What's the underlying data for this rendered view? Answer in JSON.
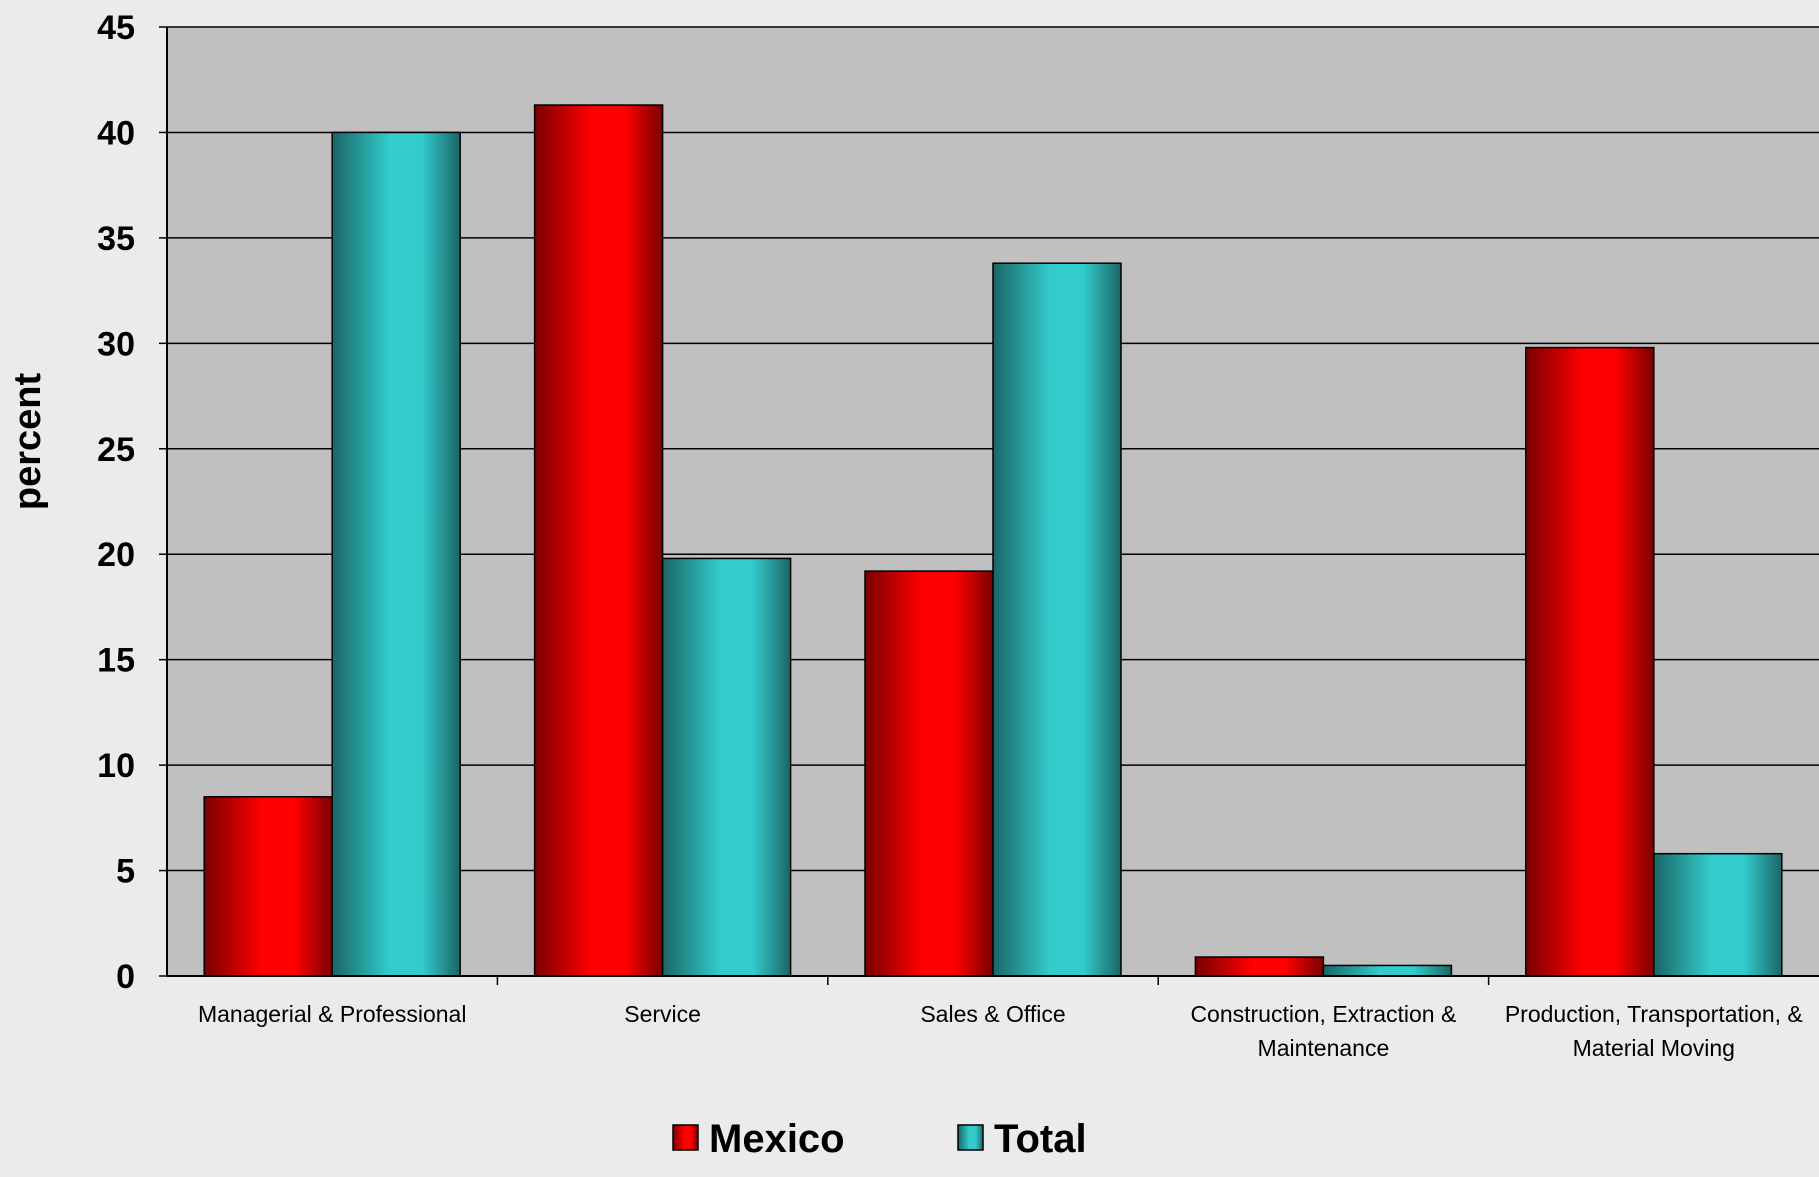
{
  "chart_data": {
    "type": "bar",
    "title": "",
    "xlabel": "",
    "ylabel": "percent",
    "ylim": [
      0,
      45
    ],
    "yticks": [
      0,
      5,
      10,
      15,
      20,
      25,
      30,
      35,
      40,
      45
    ],
    "grid": true,
    "legend_position": "bottom",
    "categories": [
      [
        "Managerial & Professional"
      ],
      [
        "Service"
      ],
      [
        "Sales & Office"
      ],
      [
        "Construction, Extraction &",
        "Maintenance"
      ],
      [
        "Production, Transportation, &",
        "Material Moving"
      ]
    ],
    "series": [
      {
        "name": "Mexico",
        "color": "#ff0000",
        "shade": "#7a0000",
        "values": [
          8.5,
          41.3,
          19.2,
          0.9,
          29.8
        ]
      },
      {
        "name": "Total",
        "color": "#33cccc",
        "shade": "#1a6666",
        "values": [
          40.0,
          19.8,
          33.8,
          0.5,
          5.8
        ]
      }
    ]
  }
}
